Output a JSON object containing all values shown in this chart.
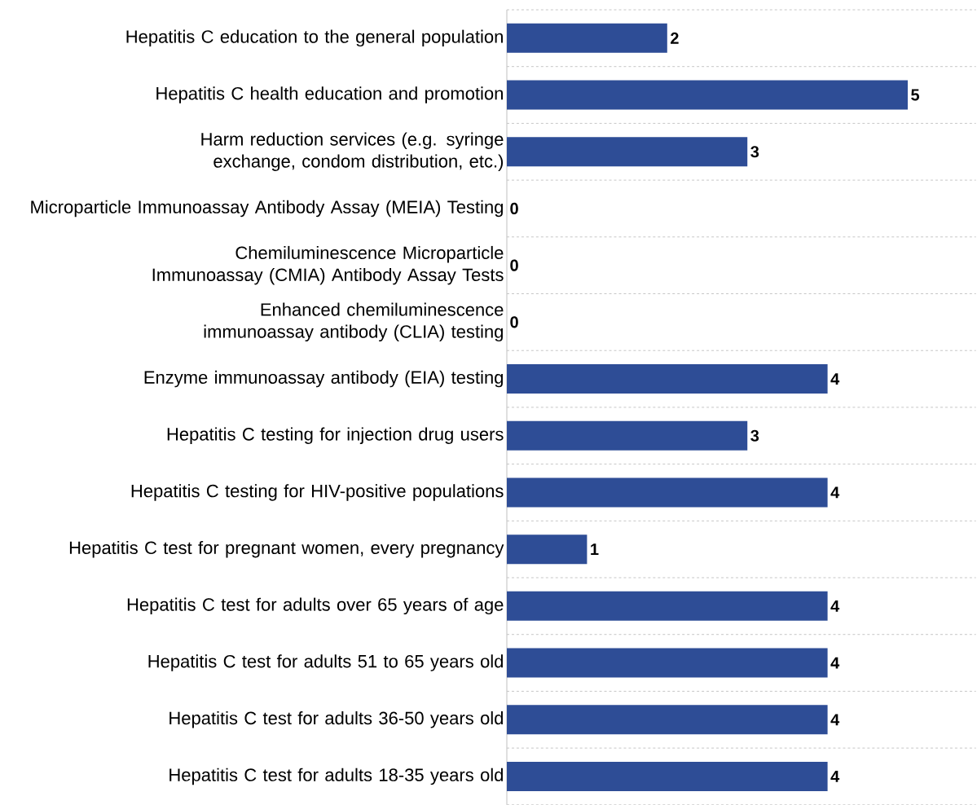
{
  "chart_data": {
    "type": "bar",
    "orientation": "horizontal",
    "categories": [
      "Hepatitis C education to the general population",
      "Hepatitis C health education and promotion",
      "Harm reduction services (e.g. syringe exchange, condom distribution, etc.)",
      "Microparticle Immunoassay Antibody Assay (MEIA) Testing",
      "Chemiluminescence Microparticle Immunoassay (CMIA) Antibody Assay Tests",
      "Enhanced chemiluminescence immunoassay antibody (CLIA) testing",
      "Enzyme immunoassay antibody (EIA) testing",
      "Hepatitis C testing for injection drug users",
      "Hepatitis C testing for HIV-positive populations",
      "Hepatitis C test for pregnant women, every pregnancy",
      "Hepatitis C test for adults over 65 years of age",
      "Hepatitis C test for adults 51 to 65 years old",
      "Hepatitis C test for adults 36-50 years old",
      "Hepatitis C test for adults 18-35 years old"
    ],
    "values": [
      2,
      5,
      3,
      0,
      0,
      0,
      4,
      3,
      4,
      1,
      4,
      4,
      4,
      4
    ],
    "color": "#2e4d96",
    "data_labels": true,
    "grid": "y"
  }
}
